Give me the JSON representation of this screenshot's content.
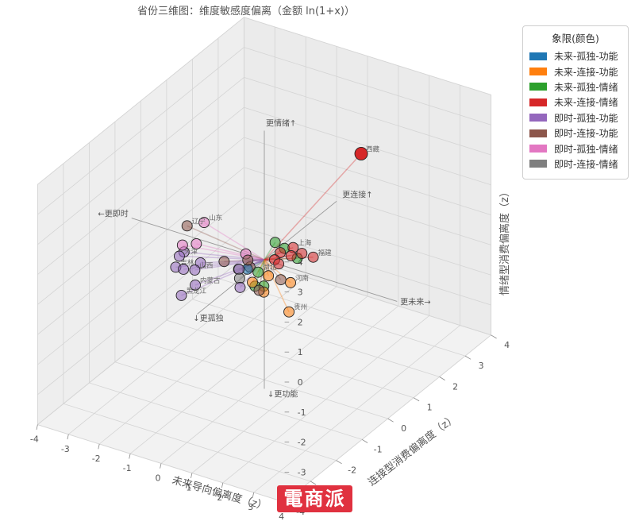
{
  "chart_data": {
    "type": "scatter3d",
    "title": "省份三维图：维度敏感度偏离（金额 ln(1+x)）",
    "xlabel": "未来导向偏离度（z）",
    "ylabel": "连接型消费偏离度（z）",
    "zlabel": "情绪型消费偏离度（z）",
    "xlim": [
      -4,
      4
    ],
    "ylim": [
      -4,
      4
    ],
    "zlim": [
      -4,
      4
    ],
    "xticks": [
      "-4",
      "-3",
      "-2",
      "-1",
      "0",
      "1",
      "2",
      "3",
      "4"
    ],
    "yticks": [
      "-4",
      "-3",
      "-2",
      "-1",
      "0",
      "1",
      "2",
      "3",
      "4"
    ],
    "zticks": [
      "-4",
      "-3",
      "-2",
      "-1",
      "0",
      "1",
      "2",
      "3",
      "4"
    ],
    "grid": true,
    "legend": {
      "title": "象限(颜色)",
      "position": "right",
      "entries": [
        {
          "name": "未来-孤独-功能",
          "color": "#1f77b4"
        },
        {
          "name": "未来-连接-功能",
          "color": "#ff7f0e"
        },
        {
          "name": "未来-孤独-情绪",
          "color": "#2ca02c"
        },
        {
          "name": "未来-连接-情绪",
          "color": "#d62728"
        },
        {
          "name": "即时-孤独-功能",
          "color": "#9467bd"
        },
        {
          "name": "即时-连接-功能",
          "color": "#8c564b"
        },
        {
          "name": "即时-孤独-情绪",
          "color": "#e377c2"
        },
        {
          "name": "即时-连接-情绪",
          "color": "#7f7f7f"
        }
      ]
    },
    "direction_labels": [
      {
        "text": "更情绪↑",
        "color": "#555555"
      },
      {
        "text": "↓更功能",
        "color": "#555555"
      },
      {
        "text": "←更即时",
        "color": "#555555"
      },
      {
        "text": "更未来→",
        "color": "#555555"
      },
      {
        "text": "更连接↑",
        "color": "#555555"
      },
      {
        "text": "↓更孤独",
        "color": "#555555"
      }
    ],
    "points": [
      {
        "label": "西藏",
        "x": 1.8,
        "y": 1.6,
        "z": 3.0,
        "quadrant": 3
      },
      {
        "label": "",
        "x": 1.2,
        "y": -0.4,
        "z": 0.8,
        "quadrant": 3
      },
      {
        "label": "",
        "x": 1.3,
        "y": -0.1,
        "z": 0.7,
        "quadrant": 3
      },
      {
        "label": "上海",
        "x": 1.1,
        "y": -0.2,
        "z": 0.9,
        "quadrant": 3
      },
      {
        "label": "福建",
        "x": 1.5,
        "y": 0.1,
        "z": 0.5,
        "quadrant": 3
      },
      {
        "label": "",
        "x": 0.6,
        "y": -0.1,
        "z": 0.5,
        "quadrant": 3
      },
      {
        "label": "",
        "x": 0.5,
        "y": -0.2,
        "z": 0.3,
        "quadrant": 3
      },
      {
        "label": "",
        "x": 0.8,
        "y": -0.4,
        "z": 0.4,
        "quadrant": 3
      },
      {
        "label": "",
        "x": 0.4,
        "y": 0.3,
        "z": 0.3,
        "quadrant": 2
      },
      {
        "label": "",
        "x": 0.9,
        "y": 0.2,
        "z": 0.2,
        "quadrant": 2
      },
      {
        "label": "湖北",
        "x": 0.3,
        "y": -0.6,
        "z": 0.1,
        "quadrant": 2
      },
      {
        "label": "",
        "x": 0.1,
        "y": 0.3,
        "z": 0.4,
        "quadrant": 2
      },
      {
        "label": "",
        "x": 0.4,
        "y": -0.5,
        "z": -0.4,
        "quadrant": 2
      },
      {
        "label": "",
        "x": 0.2,
        "y": -0.6,
        "z": -0.4,
        "quadrant": 2
      },
      {
        "label": "",
        "x": 0.3,
        "y": -0.2,
        "z": -0.3,
        "quadrant": 1
      },
      {
        "label": "河南",
        "x": 1.1,
        "y": -0.3,
        "z": -0.2,
        "quadrant": 1
      },
      {
        "label": "",
        "x": 0.4,
        "y": -0.5,
        "z": -0.6,
        "quadrant": 1
      },
      {
        "label": "贵州",
        "x": 1.3,
        "y": -0.6,
        "z": -0.9,
        "quadrant": 1
      },
      {
        "label": "",
        "x": 0.2,
        "y": -0.7,
        "z": -0.2,
        "quadrant": 1
      },
      {
        "label": "",
        "x": 0.7,
        "y": -0.2,
        "z": -0.3,
        "quadrant": 5
      },
      {
        "label": "",
        "x": 0.5,
        "y": -0.8,
        "z": -0.3,
        "quadrant": 5
      },
      {
        "label": "",
        "x": -0.3,
        "y": -0.6,
        "z": -0.3,
        "quadrant": 7
      },
      {
        "label": "",
        "x": -0.3,
        "y": -0.3,
        "z": -0.2,
        "quadrant": 0
      },
      {
        "label": "",
        "x": -0.2,
        "y": -0.4,
        "z": 0.2,
        "quadrant": 5
      },
      {
        "label": "",
        "x": -0.4,
        "y": -0.5,
        "z": -0.1,
        "quadrant": 4
      },
      {
        "label": "",
        "x": -0.3,
        "y": -0.2,
        "z": -0.2,
        "quadrant": 5
      },
      {
        "label": "",
        "x": -0.2,
        "y": -0.7,
        "z": -0.5,
        "quadrant": 4
      },
      {
        "label": "",
        "x": -0.6,
        "y": 0.0,
        "z": 0.0,
        "quadrant": 6
      },
      {
        "label": "",
        "x": -0.8,
        "y": -0.6,
        "z": 0.1,
        "quadrant": 5
      },
      {
        "label": "",
        "x": -0.5,
        "y": -0.4,
        "z": -0.2,
        "quadrant": 7
      },
      {
        "label": "辽宁",
        "x": -2.0,
        "y": -0.6,
        "z": 0.9,
        "quadrant": 5
      },
      {
        "label": "山东",
        "x": -1.7,
        "y": -0.3,
        "z": 0.9,
        "quadrant": 6
      },
      {
        "label": "",
        "x": -1.7,
        "y": -0.6,
        "z": 0.4,
        "quadrant": 6
      },
      {
        "label": "",
        "x": -1.9,
        "y": -0.9,
        "z": 0.5,
        "quadrant": 6
      },
      {
        "label": "",
        "x": -2.1,
        "y": -0.6,
        "z": 0.0,
        "quadrant": 4
      },
      {
        "label": "天津",
        "x": -2.0,
        "y": -0.9,
        "z": 0.1,
        "quadrant": 4
      },
      {
        "label": "",
        "x": -1.7,
        "y": -1.1,
        "z": -0.1,
        "quadrant": 4
      },
      {
        "label": "",
        "x": -1.4,
        "y": -0.8,
        "z": 0.0,
        "quadrant": 4
      },
      {
        "label": "山西",
        "x": -1.5,
        "y": -0.9,
        "z": -0.2,
        "quadrant": 4
      },
      {
        "label": "吉林",
        "x": -2.2,
        "y": -0.8,
        "z": -0.4,
        "quadrant": 4
      },
      {
        "label": "内蒙古",
        "x": -1.4,
        "y": -1.0,
        "z": -0.6,
        "quadrant": 4
      },
      {
        "label": "黑龙江",
        "x": -1.6,
        "y": -1.3,
        "z": -0.8,
        "quadrant": 4
      }
    ],
    "extra_text": [
      "贵州",
      "湖北"
    ]
  },
  "watermark": "電商派"
}
